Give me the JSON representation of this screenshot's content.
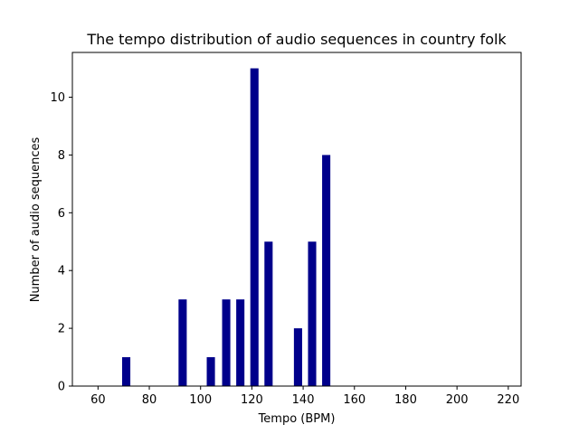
{
  "chart_data": {
    "type": "bar",
    "title": "The tempo distribution of audio sequences in country folk",
    "xlabel": "Tempo (BPM)",
    "ylabel": "Number of audio sequences",
    "xlim": [
      50,
      225
    ],
    "ylim": [
      0,
      11.55
    ],
    "xticks": [
      60,
      80,
      100,
      120,
      140,
      160,
      180,
      200,
      220
    ],
    "yticks": [
      0,
      2,
      4,
      6,
      8,
      10
    ],
    "bar_width": 3.2,
    "grid": false,
    "legend": "none",
    "bar_color": "#00008b",
    "x": [
      71,
      93,
      104,
      110,
      115.5,
      121,
      126.5,
      138,
      143.5,
      149
    ],
    "values": [
      1,
      3,
      1,
      3,
      3,
      11,
      5,
      2,
      5,
      8
    ]
  }
}
